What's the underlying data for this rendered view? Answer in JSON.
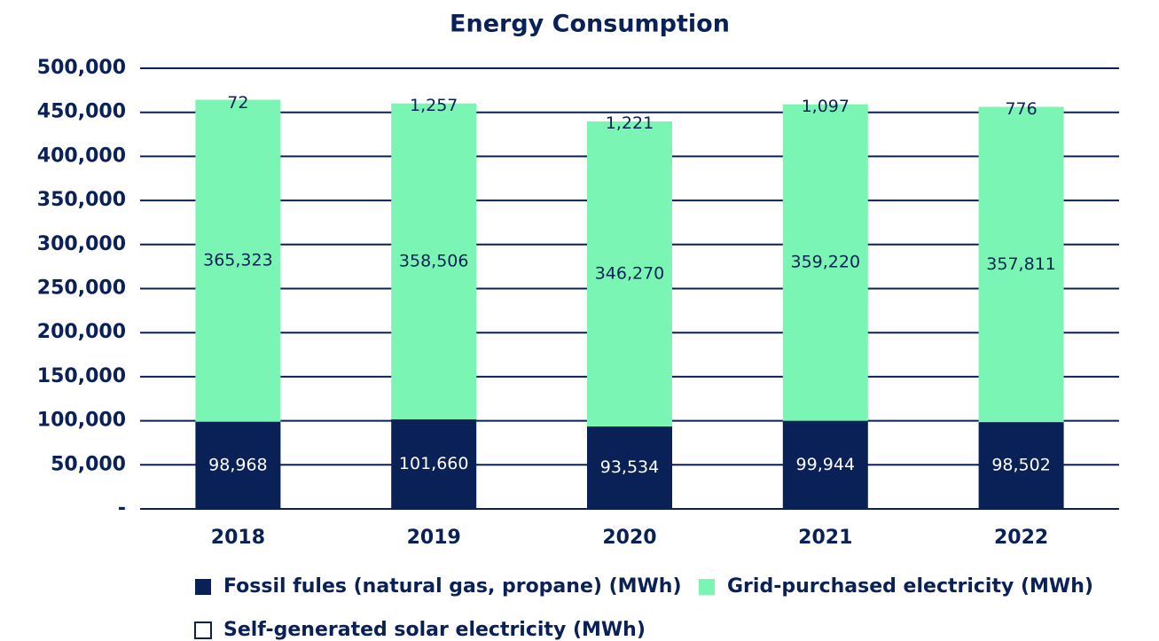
{
  "chart_data": {
    "type": "bar",
    "stacked": true,
    "title": "Energy Consumption",
    "categories": [
      "2018",
      "2019",
      "2020",
      "2021",
      "2022"
    ],
    "series": [
      {
        "name": "Fossil fules (natural gas, propane) (MWh)",
        "color": "#0a2158",
        "values": [
          98968,
          101660,
          93534,
          99944,
          98502
        ],
        "value_labels": [
          "98,968",
          "101,660",
          "93,534",
          "99,944",
          "98,502"
        ]
      },
      {
        "name": "Grid-purchased electricity (MWh)",
        "color": "#7af5b3",
        "values": [
          365323,
          358506,
          346270,
          359220,
          357811
        ],
        "value_labels": [
          "365,323",
          "358,506",
          "346,270",
          "359,220",
          "357,811"
        ]
      },
      {
        "name": "Self-generated solar electricity (MWh)",
        "color": "#ffffff",
        "values": [
          72,
          1257,
          1221,
          1097,
          776
        ],
        "value_labels": [
          "72",
          "1,257",
          "1,221",
          "1,097",
          "776"
        ]
      }
    ],
    "ylim": [
      0,
      500000
    ],
    "yticks": [
      {
        "value": 0,
        "label": "-"
      },
      {
        "value": 50000,
        "label": "50,000"
      },
      {
        "value": 100000,
        "label": "100,000"
      },
      {
        "value": 150000,
        "label": "150,000"
      },
      {
        "value": 200000,
        "label": "200,000"
      },
      {
        "value": 250000,
        "label": "250,000"
      },
      {
        "value": 300000,
        "label": "300,000"
      },
      {
        "value": 350000,
        "label": "350,000"
      },
      {
        "value": 400000,
        "label": "400,000"
      },
      {
        "value": 450000,
        "label": "450,000"
      },
      {
        "value": 500000,
        "label": "500,000"
      }
    ],
    "grid": true
  }
}
